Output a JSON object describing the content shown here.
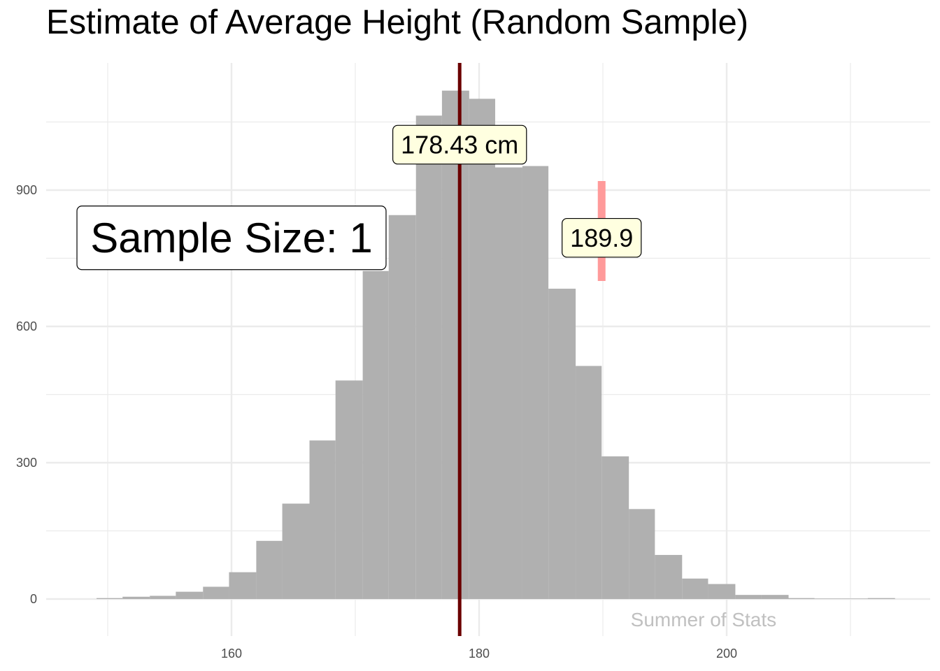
{
  "title": "Estimate of Average Height (Random Sample)",
  "watermark": "Summer of Stats",
  "sample_size_label": "Sample Size:  1",
  "mean_label": "178.43 cm",
  "sample_label": "189.9",
  "colors": {
    "bars": "#b0b0b0",
    "mean_line": "#6b0000",
    "sample_marker": "#ff9a9a",
    "label_fill": "#ffffe0",
    "grid": "#ebebeb"
  },
  "chart_data": {
    "type": "bar",
    "title": "Estimate of Average Height (Random Sample)",
    "xlabel": "",
    "ylabel": "",
    "xlim": [
      145,
      216
    ],
    "ylim": [
      -120,
      1175
    ],
    "x_ticks": [
      160,
      180,
      200
    ],
    "y_ticks": [
      0,
      300,
      600,
      900
    ],
    "grid": true,
    "legend": "none",
    "bin_width": 2.15,
    "bins": [
      {
        "x0": 149.1,
        "x1": 151.2,
        "count": 2
      },
      {
        "x0": 151.2,
        "x1": 153.4,
        "count": 5
      },
      {
        "x0": 153.4,
        "x1": 155.5,
        "count": 7
      },
      {
        "x0": 155.5,
        "x1": 157.7,
        "count": 16
      },
      {
        "x0": 157.7,
        "x1": 159.8,
        "count": 27
      },
      {
        "x0": 159.8,
        "x1": 162.0,
        "count": 59
      },
      {
        "x0": 162.0,
        "x1": 164.1,
        "count": 128
      },
      {
        "x0": 164.1,
        "x1": 166.3,
        "count": 210
      },
      {
        "x0": 166.3,
        "x1": 168.4,
        "count": 349
      },
      {
        "x0": 168.4,
        "x1": 170.6,
        "count": 481
      },
      {
        "x0": 170.6,
        "x1": 172.7,
        "count": 722
      },
      {
        "x0": 172.7,
        "x1": 174.9,
        "count": 845
      },
      {
        "x0": 174.9,
        "x1": 177.0,
        "count": 1064
      },
      {
        "x0": 177.0,
        "x1": 179.2,
        "count": 1119
      },
      {
        "x0": 179.2,
        "x1": 181.3,
        "count": 1101
      },
      {
        "x0": 181.3,
        "x1": 183.5,
        "count": 950
      },
      {
        "x0": 183.5,
        "x1": 185.6,
        "count": 953
      },
      {
        "x0": 185.6,
        "x1": 187.8,
        "count": 683
      },
      {
        "x0": 187.8,
        "x1": 189.9,
        "count": 513
      },
      {
        "x0": 189.9,
        "x1": 192.1,
        "count": 314
      },
      {
        "x0": 192.1,
        "x1": 194.2,
        "count": 198
      },
      {
        "x0": 194.2,
        "x1": 196.4,
        "count": 97
      },
      {
        "x0": 196.4,
        "x1": 198.5,
        "count": 45
      },
      {
        "x0": 198.5,
        "x1": 200.7,
        "count": 33
      },
      {
        "x0": 200.7,
        "x1": 202.8,
        "count": 9
      },
      {
        "x0": 202.8,
        "x1": 205.0,
        "count": 9
      },
      {
        "x0": 205.0,
        "x1": 207.1,
        "count": 2
      },
      {
        "x0": 207.1,
        "x1": 209.3,
        "count": 1
      },
      {
        "x0": 209.3,
        "x1": 211.4,
        "count": 1
      },
      {
        "x0": 211.4,
        "x1": 213.6,
        "count": 2
      }
    ],
    "mean_line": {
      "x": 178.43,
      "label": "178.43 cm"
    },
    "sample_point": {
      "x": 189.9,
      "y_from": 700,
      "y_to": 920,
      "label": "189.9"
    },
    "annotations": [
      {
        "text": "Sample Size:  1",
        "x": 155.0,
        "y": 795
      },
      {
        "text": "178.43 cm",
        "x": 178.43,
        "y": 1000
      },
      {
        "text": "189.9",
        "x": 189.9,
        "y": 795
      },
      {
        "text": "Summer of Stats",
        "x": 197.0,
        "y": -30
      }
    ]
  }
}
